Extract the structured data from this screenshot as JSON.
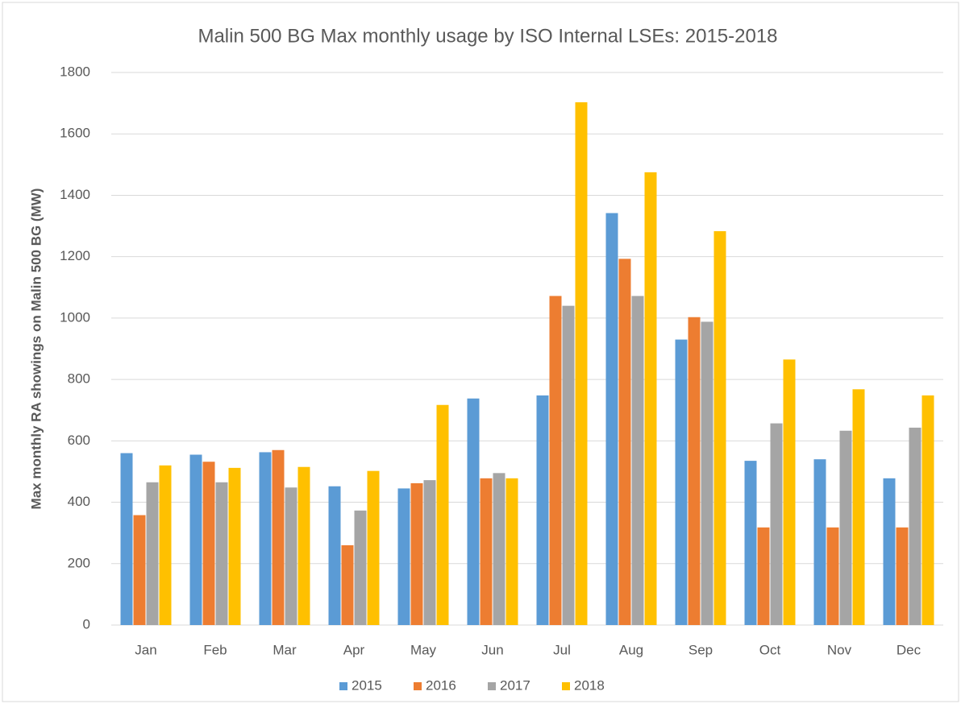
{
  "chart_data": {
    "type": "bar",
    "title": "Malin 500 BG Max monthly usage by ISO Internal LSEs: 2015-2018",
    "y_label": "Max monthly RA showings on Malin 500 BG (MW)",
    "categories": [
      "Jan",
      "Feb",
      "Mar",
      "Apr",
      "May",
      "Jun",
      "Jul",
      "Aug",
      "Sep",
      "Oct",
      "Nov",
      "Dec"
    ],
    "series": [
      {
        "name": "2015",
        "color": "#5b9bd5",
        "values": [
          560,
          555,
          563,
          452,
          445,
          738,
          748,
          1342,
          930,
          535,
          540,
          478
        ]
      },
      {
        "name": "2016",
        "color": "#ed7d31",
        "values": [
          358,
          532,
          570,
          260,
          462,
          478,
          1072,
          1193,
          1003,
          318,
          318,
          318
        ]
      },
      {
        "name": "2017",
        "color": "#a5a5a5",
        "values": [
          465,
          465,
          448,
          373,
          472,
          495,
          1040,
          1072,
          988,
          657,
          633,
          643
        ]
      },
      {
        "name": "2018",
        "color": "#ffc000",
        "values": [
          520,
          512,
          515,
          502,
          717,
          478,
          1703,
          1475,
          1283,
          865,
          768,
          748
        ]
      }
    ],
    "ylim": [
      0,
      1800
    ],
    "yticks": [
      0,
      200,
      400,
      600,
      800,
      1000,
      1200,
      1400,
      1600,
      1800
    ],
    "grid": true,
    "legend": "bottom"
  }
}
